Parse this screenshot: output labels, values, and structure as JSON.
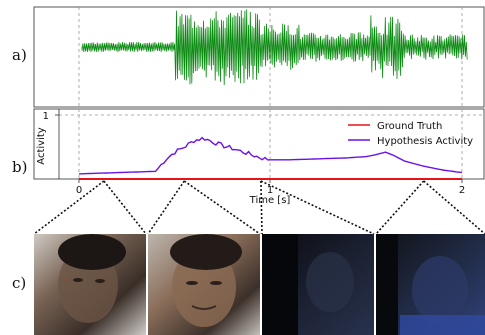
{
  "panels": {
    "a": "a)",
    "b": "b)",
    "c": "c)"
  },
  "colors": {
    "waveform": "#0b8a12",
    "ground_truth": "#e8121b",
    "hypothesis": "#6a12e8",
    "frame_edge": "#ffffff"
  },
  "waveform": {
    "description_kind": "audio-waveform",
    "color_ref": "waveform"
  },
  "chart_data": {
    "type": "line",
    "xlabel": "Time [s]",
    "ylabel": "Activity",
    "xlim": [
      0,
      2
    ],
    "ylim": [
      0,
      1
    ],
    "x_ticks": [
      "0",
      "1",
      "2"
    ],
    "y_ticks": [
      "1"
    ],
    "grid": "vertical dashed at x ticks; horizontal dashed at y=1",
    "legend_position": "top-right",
    "series": [
      {
        "name": "Ground Truth",
        "color": "#e8121b",
        "x": [
          0.0,
          2.0
        ],
        "y": [
          0.0,
          0.0
        ]
      },
      {
        "name": "Hypothesis Activity",
        "color": "#6a12e8",
        "x": [
          0.0,
          0.2,
          0.4,
          0.45,
          0.5,
          0.55,
          0.6,
          0.65,
          0.7,
          0.75,
          0.8,
          0.85,
          0.9,
          0.95,
          1.0,
          1.1,
          1.2,
          1.3,
          1.4,
          1.5,
          1.55,
          1.6,
          1.65,
          1.7,
          1.8,
          1.9,
          2.0
        ],
        "y": [
          0.08,
          0.1,
          0.12,
          0.3,
          0.42,
          0.5,
          0.6,
          0.64,
          0.58,
          0.52,
          0.48,
          0.43,
          0.38,
          0.33,
          0.3,
          0.3,
          0.31,
          0.32,
          0.33,
          0.35,
          0.38,
          0.42,
          0.36,
          0.28,
          0.2,
          0.14,
          0.1
        ]
      }
    ]
  },
  "frames": {
    "count": 4,
    "connector_times_s": [
      0.13,
      0.55,
      0.95,
      1.8
    ],
    "items": [
      {
        "icon": "face-frame-1",
        "tones": [
          "#5a4a3e",
          "#2b2420",
          "#8a7060",
          "#c9c4bf"
        ]
      },
      {
        "icon": "face-frame-2",
        "tones": [
          "#6b5645",
          "#2e2622",
          "#9c7f6a",
          "#c9c4bf"
        ]
      },
      {
        "icon": "dark-frame-3",
        "tones": [
          "#0e0f14",
          "#1e2230",
          "#2a3350",
          "#101216"
        ]
      },
      {
        "icon": "dark-frame-4",
        "tones": [
          "#15161c",
          "#243050",
          "#2c3c6a",
          "#0c0d10"
        ]
      }
    ]
  }
}
